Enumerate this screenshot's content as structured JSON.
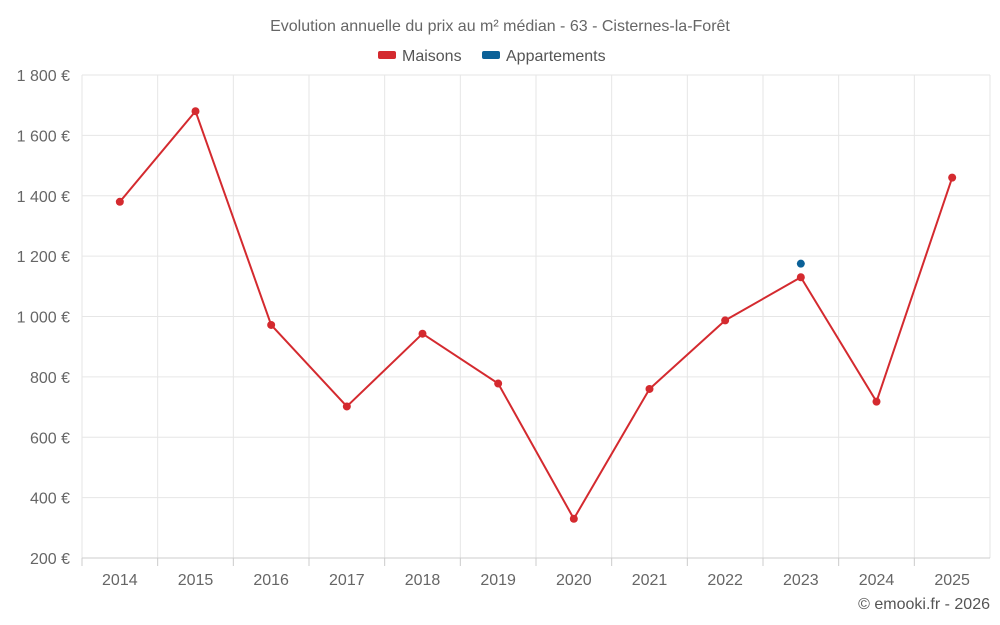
{
  "chart_data": {
    "type": "line",
    "title": "Evolution annuelle du prix au m² médian - 63 - Cisternes-la-Forêt",
    "categories": [
      "2014",
      "2015",
      "2016",
      "2017",
      "2018",
      "2019",
      "2020",
      "2021",
      "2022",
      "2023",
      "2024",
      "2025"
    ],
    "y_tick_labels": [
      "200 €",
      "400 €",
      "600 €",
      "800 €",
      "1 000 €",
      "1 200 €",
      "1 400 €",
      "1 600 €",
      "1 800 €"
    ],
    "y_ticks": [
      200,
      400,
      600,
      800,
      1000,
      1200,
      1400,
      1600,
      1800
    ],
    "ylim": [
      200,
      1800
    ],
    "legend_position": "top-center",
    "series": [
      {
        "name": "Maisons",
        "color": "#d42a2f",
        "values": [
          1380,
          1680,
          972,
          702,
          943,
          778,
          330,
          760,
          987,
          1130,
          718,
          1460
        ]
      },
      {
        "name": "Appartements",
        "color": "#0b6198",
        "values": [
          null,
          null,
          null,
          null,
          null,
          null,
          null,
          null,
          null,
          1175,
          null,
          null
        ]
      }
    ],
    "credit": "© emooki.fr - 2026"
  }
}
